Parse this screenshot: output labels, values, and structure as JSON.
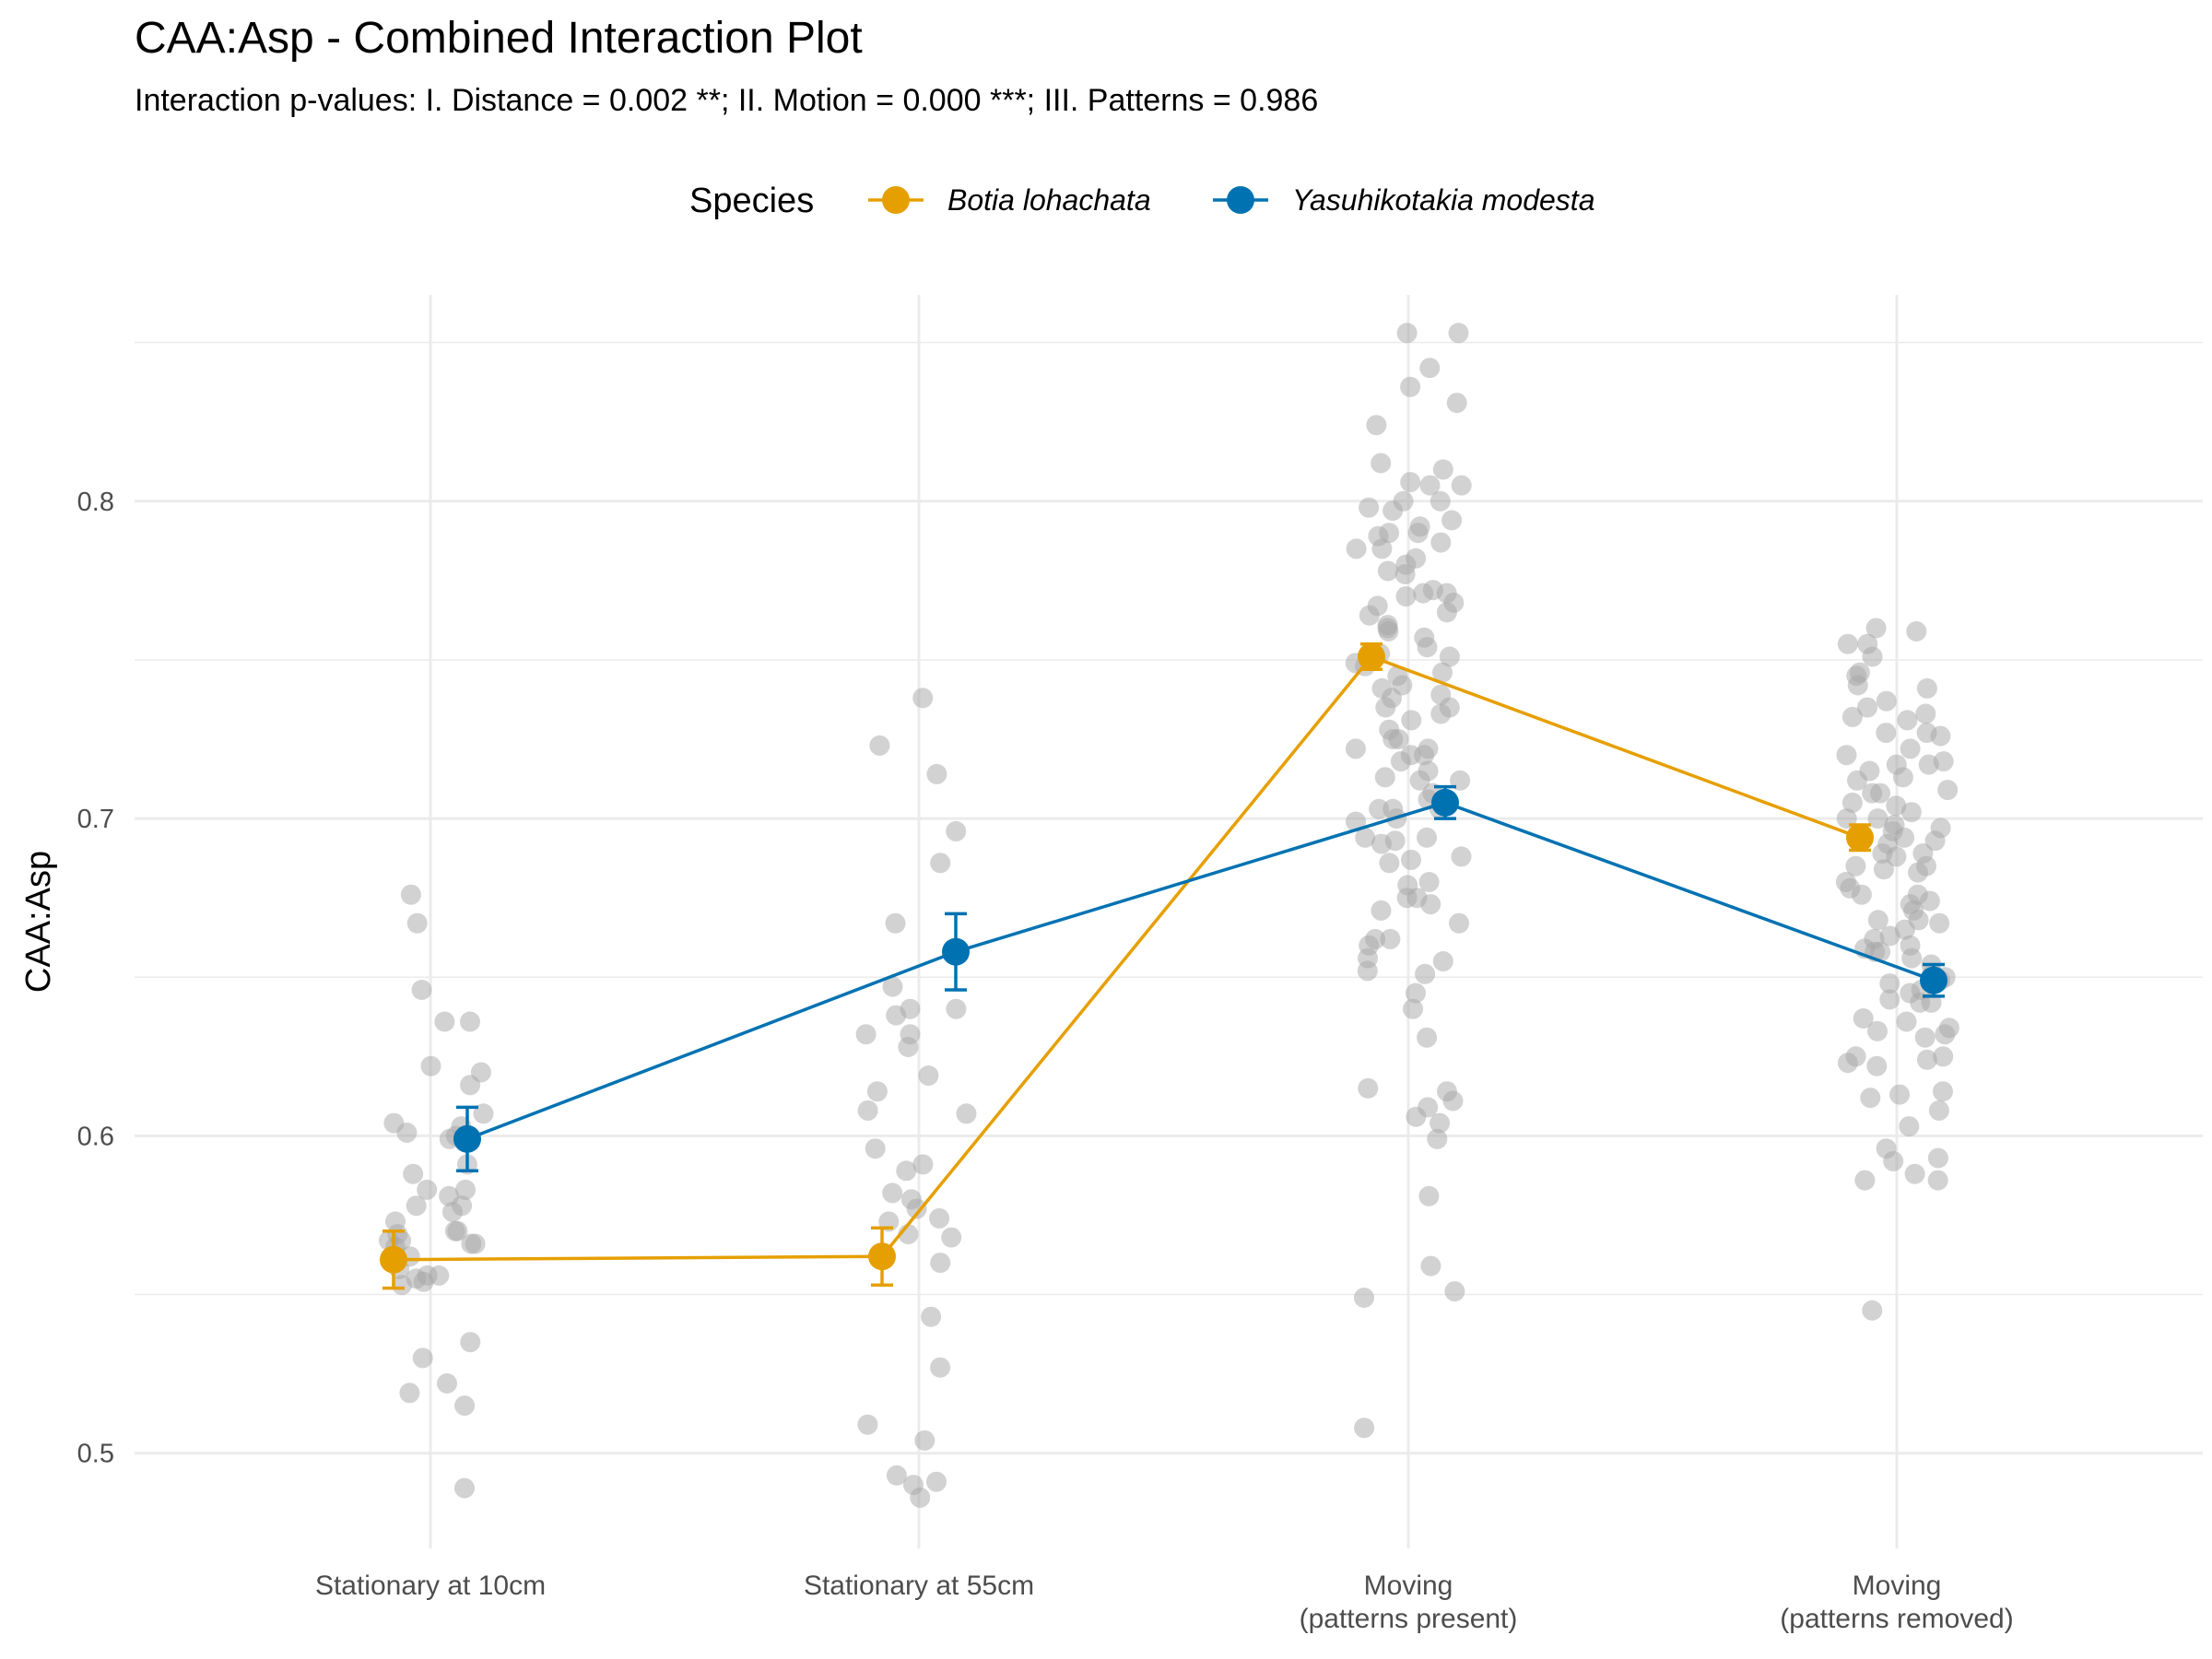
{
  "chart_data": {
    "type": "scatter",
    "title": "CAA:Asp - Combined Interaction Plot",
    "subtitle": "Interaction p-values: I. Distance = 0.002 **; II. Motion = 0.000 ***; III. Patterns = 0.986",
    "xlabel": "",
    "ylabel": "CAA:Asp",
    "ylim": [
      0.47,
      0.865
    ],
    "y_ticks": [
      "0.5",
      "0.6",
      "0.7",
      "0.8"
    ],
    "y_tick_values": [
      0.5,
      0.6,
      0.7,
      0.8
    ],
    "categories": [
      [
        "Stationary at 10cm"
      ],
      [
        "Stationary at 55cm"
      ],
      [
        "Moving",
        "(patterns present)"
      ],
      [
        "Moving",
        "(patterns removed)"
      ]
    ],
    "grid": true,
    "legend": {
      "title": "Species",
      "position": "top",
      "entries": [
        "Botia lohachata",
        "Yasuhikotakia modesta"
      ]
    },
    "series": [
      {
        "name": "Botia lohachata",
        "color": "#E69F00",
        "means": [
          0.561,
          0.562,
          0.751,
          0.694
        ],
        "error_low": [
          0.552,
          0.553,
          0.747,
          0.69
        ],
        "error_high": [
          0.57,
          0.571,
          0.755,
          0.698
        ]
      },
      {
        "name": "Yasuhikotakia modesta",
        "color": "#0072B2",
        "means": [
          0.599,
          0.658,
          0.705,
          0.649
        ],
        "error_low": [
          0.589,
          0.646,
          0.7,
          0.644
        ],
        "error_high": [
          0.609,
          0.67,
          0.71,
          0.654
        ]
      }
    ],
    "raw_points_color": "#a6a6a6",
    "raw_points": [
      [
        0.522,
        0.519,
        0.636,
        0.607,
        0.599,
        0.581,
        0.573,
        0.566,
        0.576,
        0.583,
        0.6,
        0.588,
        0.578,
        0.569,
        0.556,
        0.553,
        0.558,
        0.603,
        0.616,
        0.591,
        0.567,
        0.556,
        0.57,
        0.555,
        0.601,
        0.578,
        0.566,
        0.636,
        0.646,
        0.53,
        0.515,
        0.565,
        0.604,
        0.676,
        0.667,
        0.622,
        0.62,
        0.583,
        0.57,
        0.567,
        0.554,
        0.535,
        0.489,
        0.562
      ],
      [
        0.738,
        0.696,
        0.686,
        0.614,
        0.619,
        0.596,
        0.574,
        0.569,
        0.56,
        0.647,
        0.589,
        0.628,
        0.64,
        0.607,
        0.58,
        0.608,
        0.582,
        0.723,
        0.714,
        0.632,
        0.638,
        0.667,
        0.632,
        0.573,
        0.568,
        0.577,
        0.591,
        0.64,
        0.543,
        0.527,
        0.509,
        0.504,
        0.49,
        0.486,
        0.491,
        0.493
      ],
      [
        0.853,
        0.831,
        0.824,
        0.806,
        0.794,
        0.792,
        0.785,
        0.771,
        0.757,
        0.745,
        0.733,
        0.722,
        0.713,
        0.703,
        0.688,
        0.679,
        0.662,
        0.645,
        0.631,
        0.614,
        0.606,
        0.581,
        0.549,
        0.551,
        0.508,
        0.812,
        0.8,
        0.787,
        0.778,
        0.765,
        0.752,
        0.739,
        0.725,
        0.718,
        0.699,
        0.686,
        0.673,
        0.655,
        0.604,
        0.805,
        0.79,
        0.771,
        0.761,
        0.749,
        0.741,
        0.731,
        0.72,
        0.706,
        0.694,
        0.675,
        0.651,
        0.611,
        0.609,
        0.798,
        0.782,
        0.767,
        0.754,
        0.742,
        0.728,
        0.715,
        0.703,
        0.693,
        0.671,
        0.662,
        0.652,
        0.64,
        0.853,
        0.842,
        0.836,
        0.81,
        0.8,
        0.79,
        0.78,
        0.77,
        0.764,
        0.751,
        0.738,
        0.722,
        0.712,
        0.7,
        0.694,
        0.66,
        0.656,
        0.615,
        0.599,
        0.559,
        0.805,
        0.797,
        0.789,
        0.777,
        0.768,
        0.759,
        0.748,
        0.735,
        0.725,
        0.712,
        0.703,
        0.692,
        0.675,
        0.667,
        0.785,
        0.772,
        0.76,
        0.746,
        0.735,
        0.72,
        0.708,
        0.687,
        0.68
      ],
      [
        0.759,
        0.751,
        0.742,
        0.733,
        0.72,
        0.712,
        0.704,
        0.696,
        0.689,
        0.683,
        0.673,
        0.665,
        0.658,
        0.648,
        0.643,
        0.636,
        0.622,
        0.625,
        0.614,
        0.603,
        0.596,
        0.586,
        0.545,
        0.755,
        0.737,
        0.727,
        0.718,
        0.709,
        0.7,
        0.692,
        0.684,
        0.676,
        0.667,
        0.658,
        0.65,
        0.642,
        0.634,
        0.624,
        0.592,
        0.588,
        0.608,
        0.76,
        0.741,
        0.731,
        0.722,
        0.713,
        0.705,
        0.697,
        0.689,
        0.68,
        0.671,
        0.662,
        0.654,
        0.646,
        0.632,
        0.613,
        0.593,
        0.586,
        0.745,
        0.735,
        0.726,
        0.717,
        0.708,
        0.7,
        0.693,
        0.685,
        0.676,
        0.668,
        0.659,
        0.651,
        0.642,
        0.631,
        0.755,
        0.746,
        0.732,
        0.715,
        0.708,
        0.698,
        0.688,
        0.678,
        0.668,
        0.66,
        0.649,
        0.637,
        0.623,
        0.612,
        0.727,
        0.717,
        0.702,
        0.694,
        0.685,
        0.674,
        0.663,
        0.656,
        0.645,
        0.633,
        0.625
      ]
    ]
  }
}
